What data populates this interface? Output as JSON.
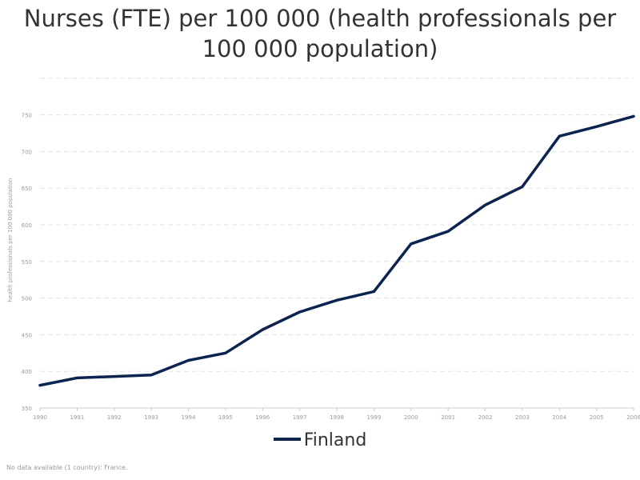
{
  "title": {
    "line1": "Nurses (FTE) per 100 000 (health professionals per",
    "line2": "100 000 population)"
  },
  "legend": {
    "label": "Finland"
  },
  "footnote": "No data available (1 country): France.",
  "colors": {
    "series": "#0d2350",
    "grid": "#e3e3e3",
    "axis_text": "#9a9a9a"
  },
  "chart_data": {
    "type": "line",
    "title": "Nurses (FTE) per 100 000 (health professionals per 100 000 population)",
    "xlabel": "",
    "ylabel": "health professionals per 100 000 population",
    "x": [
      1990,
      1991,
      1992,
      1993,
      1994,
      1995,
      1996,
      1997,
      1998,
      1999,
      2000,
      2001,
      2002,
      2003,
      2004,
      2005,
      2006
    ],
    "y_ticks": [
      350,
      400,
      450,
      500,
      550,
      600,
      650,
      700,
      750
    ],
    "ylim": [
      350,
      800
    ],
    "grid": true,
    "legend_position": "bottom-center",
    "series": [
      {
        "name": "Finland",
        "values": [
          381,
          391,
          393,
          395,
          415,
          425,
          457,
          481,
          497,
          509,
          574,
          591,
          627,
          652,
          721,
          734,
          748
        ]
      }
    ]
  }
}
